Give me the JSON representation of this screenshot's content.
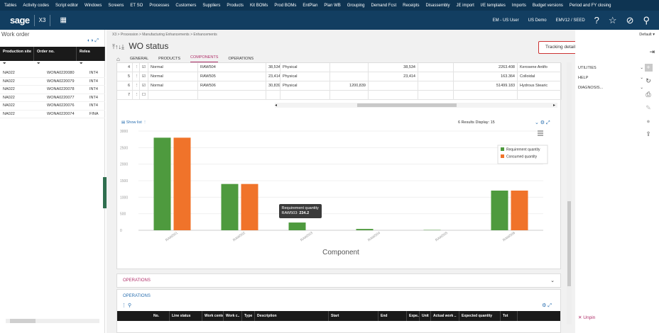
{
  "top_menu": [
    "Tables",
    "Activity codes",
    "Script editor",
    "Windows",
    "Screens",
    "ET SO",
    "Processes",
    "Customers",
    "Suppliers",
    "Products",
    "Kit BOMs",
    "Prod BOMs",
    "EntPlan",
    "Plan WB",
    "Grouping",
    "Demand Fcst",
    "Receipts",
    "Disassembly",
    "JE import",
    "I/E templates",
    "Imports",
    "Budget versions",
    "Period and FY closing"
  ],
  "app": {
    "logo": "sage",
    "module": "X3",
    "user": "EM - US User",
    "company": "US Demo",
    "folder": "EMV12 / SEED"
  },
  "left_panel": {
    "title": "Work order",
    "columns": [
      "Production site",
      "Order no.",
      "Relea"
    ],
    "rows": [
      [
        "NA022",
        "WONA0220080",
        "INT4"
      ],
      [
        "NA022",
        "WONA0220079",
        "INT4"
      ],
      [
        "NA022",
        "WONA0220078",
        "INT4"
      ],
      [
        "NA022",
        "WONA0220077",
        "INT4"
      ],
      [
        "NA022",
        "WONA0220076",
        "INT4"
      ],
      [
        "NA022",
        "WONA0220074",
        "FINA"
      ]
    ]
  },
  "breadcrumb": "X3 > Procession > Manufacturing Enhancements > Enhancements",
  "page_title": "WO status",
  "tabs": [
    "GENERAL",
    "PRODUCTS",
    "COMPONENTS",
    "OPERATIONS"
  ],
  "active_tab": "COMPONENTS",
  "tracking_button": "Tracking detail",
  "components_table": {
    "rows": [
      {
        "line": "4",
        "type": "Normal",
        "component": "RAW504",
        "qty_cut": "38,534",
        "status": "Physical",
        "v1": "",
        "v2": "38,534",
        "v3": "",
        "v4": "",
        "amount": "2263.408",
        "desc": "Kerosene Antifo"
      },
      {
        "line": "5",
        "type": "Normal",
        "component": "RAW505",
        "qty_cut": "23,414",
        "status": "Physical",
        "v1": "",
        "v2": "23,414",
        "v3": "",
        "v4": "",
        "amount": "163.364",
        "desc": "Colloidal"
      },
      {
        "line": "6",
        "type": "Normal",
        "component": "RAW506",
        "qty_cut": "30,839",
        "status": "Physical",
        "v1": "1200,839",
        "v2": "",
        "v3": "",
        "v4": "",
        "amount": "51499.183",
        "desc": "Hydrous Stearic"
      },
      {
        "line": "7",
        "type": "",
        "component": "",
        "qty_cut": "",
        "status": "",
        "v1": "",
        "v2": "",
        "v3": "",
        "v4": "",
        "amount": "",
        "desc": ""
      }
    ]
  },
  "chart_toolbar": {
    "show_list": "Show list",
    "results": "6 Results",
    "display_label": "Display",
    "display_value": "15"
  },
  "chart_data": {
    "type": "bar",
    "categories": [
      "RAW501",
      "RAW502",
      "RAW503",
      "RAW504",
      "RAW505",
      "RAW506"
    ],
    "series": [
      {
        "name": "Requirement quantity",
        "color": "#4e9a3e",
        "values": [
          2800,
          1400,
          234.2,
          40,
          10,
          1200
        ]
      },
      {
        "name": "Consumed quantity",
        "color": "#f0732a",
        "values": [
          2800,
          1400,
          0,
          0,
          0,
          1200
        ]
      }
    ],
    "xlabel": "Component",
    "ylabel": "",
    "ylim": [
      0,
      3000
    ],
    "yticks": [
      0,
      500,
      1000,
      1500,
      2000,
      2500,
      3000
    ],
    "legend": "right",
    "tooltip": {
      "title": "Requirement quantity",
      "label": "RAW503:",
      "value": "234.2"
    }
  },
  "operations": {
    "section_label": "OPERATIONS",
    "sub_label": "OPERATIONS",
    "columns": [
      "No.",
      "Line status",
      "Work center",
      "Work c..",
      "Type",
      "Description",
      "Start",
      "End",
      "Expe..",
      "Unit",
      "Actual work ..",
      "Expected quantity",
      "Tot"
    ]
  },
  "right_panel": {
    "default_label": "Default",
    "sections": [
      "UTILITIES",
      "HELP",
      "DIAGNOSIS..."
    ],
    "unpin": "Unpin"
  }
}
